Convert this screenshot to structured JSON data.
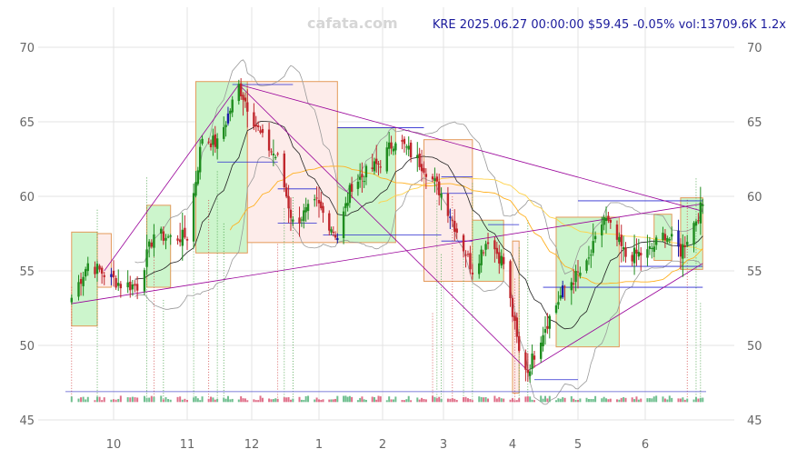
{
  "header": {
    "watermark": "cafata.com",
    "info": "KRE 2025.06.27 00:00:00 $59.45 -0.05% vol:13709.6K 1.2x"
  },
  "chart_data": {
    "type": "candlestick",
    "symbol": "KRE",
    "last_close": 59.45,
    "change_pct": -0.05,
    "volume": "13709.6K",
    "volume_ratio": "1.2x",
    "ylim": [
      45,
      71
    ],
    "y_ticks": [
      45,
      50,
      55,
      60,
      65,
      70
    ],
    "x_tick_labels": [
      "10",
      "11",
      "12",
      "1",
      "2",
      "3",
      "4",
      "5",
      "6"
    ],
    "grid": true,
    "colors": {
      "up": "#1e8c1e",
      "down": "#c0272d",
      "blue_candle": "#1a1aa8",
      "box_up": "#ccf5cc",
      "box_down": "#fdecea",
      "box_border": "#e39a5a",
      "ma_slow": "#ffd24a",
      "ma_mid": "#ffb020",
      "ma_fast": "#222222",
      "band": "#999999",
      "trend": "#990099"
    },
    "close_path": [
      [
        "2024-09-13",
        53.2
      ],
      [
        "2024-09-20",
        55.5
      ],
      [
        "2024-09-27",
        54.8
      ],
      [
        "2024-10-04",
        54.1
      ],
      [
        "2024-10-11",
        54.0
      ],
      [
        "2024-10-18",
        57.5
      ],
      [
        "2024-10-25",
        57.2
      ],
      [
        "2024-11-01",
        57.3
      ],
      [
        "2024-11-08",
        64.0
      ],
      [
        "2024-11-15",
        63.5
      ],
      [
        "2024-11-25",
        67.4
      ],
      [
        "2024-12-06",
        63.8
      ],
      [
        "2024-12-13",
        62.5
      ],
      [
        "2024-12-20",
        58.2
      ],
      [
        "2024-12-31",
        59.5
      ],
      [
        "2025-01-10",
        57.3
      ],
      [
        "2025-01-17",
        60.8
      ],
      [
        "2025-01-31",
        62.3
      ],
      [
        "2025-02-07",
        63.9
      ],
      [
        "2025-02-20",
        62.0
      ],
      [
        "2025-02-28",
        60.2
      ],
      [
        "2025-03-07",
        57.7
      ],
      [
        "2025-03-14",
        55.1
      ],
      [
        "2025-03-21",
        57.2
      ],
      [
        "2025-03-28",
        55.5
      ],
      [
        "2025-04-04",
        49.5
      ],
      [
        "2025-04-08",
        48.3
      ],
      [
        "2025-04-15",
        51.0
      ],
      [
        "2025-04-25",
        53.9
      ],
      [
        "2025-05-05",
        55.3
      ],
      [
        "2025-05-13",
        58.6
      ],
      [
        "2025-05-23",
        56.0
      ],
      [
        "2025-06-02",
        56.2
      ],
      [
        "2025-06-10",
        57.5
      ],
      [
        "2025-06-17",
        56.3
      ],
      [
        "2025-06-27",
        59.45
      ]
    ],
    "range_boxes": [
      {
        "from": "2024-09-13",
        "to": "2024-09-24",
        "low": 51.3,
        "high": 57.6,
        "direction": "up"
      },
      {
        "from": "2024-09-24",
        "to": "2024-09-30",
        "low": 53.9,
        "high": 57.5,
        "direction": "down"
      },
      {
        "from": "2024-10-15",
        "to": "2024-10-25",
        "low": 53.9,
        "high": 59.4,
        "direction": "up"
      },
      {
        "from": "2024-11-05",
        "to": "2024-11-29",
        "low": 56.2,
        "high": 67.7,
        "direction": "up"
      },
      {
        "from": "2024-11-29",
        "to": "2025-01-10",
        "low": 56.9,
        "high": 67.7,
        "direction": "down"
      },
      {
        "from": "2025-01-10",
        "to": "2025-02-07",
        "low": 56.9,
        "high": 64.6,
        "direction": "up"
      },
      {
        "from": "2025-02-20",
        "to": "2025-03-14",
        "low": 54.3,
        "high": 63.8,
        "direction": "down"
      },
      {
        "from": "2025-03-14",
        "to": "2025-03-28",
        "low": 54.3,
        "high": 58.4,
        "direction": "up"
      },
      {
        "from": "2025-04-01",
        "to": "2025-04-04",
        "low": 46.8,
        "high": 57.0,
        "direction": "down"
      },
      {
        "from": "2025-04-21",
        "to": "2025-05-20",
        "low": 49.9,
        "high": 58.6,
        "direction": "up"
      },
      {
        "from": "2025-06-05",
        "to": "2025-06-13",
        "low": 55.7,
        "high": 58.8,
        "direction": "up"
      },
      {
        "from": "2025-06-17",
        "to": "2025-06-27",
        "low": 55.1,
        "high": 59.9,
        "direction": "up"
      }
    ],
    "level_lines": [
      {
        "from": "2024-11-22",
        "to": "2024-12-20",
        "price": 67.5
      },
      {
        "from": "2024-11-15",
        "to": "2024-12-13",
        "price": 62.3
      },
      {
        "from": "2024-12-13",
        "to": "2024-12-31",
        "price": 60.5
      },
      {
        "from": "2024-12-13",
        "to": "2024-12-31",
        "price": 58.2
      },
      {
        "from": "2025-01-10",
        "to": "2025-02-20",
        "price": 64.6
      },
      {
        "from": "2025-01-03",
        "to": "2025-02-28",
        "price": 57.4
      },
      {
        "from": "2025-02-28",
        "to": "2025-03-14",
        "price": 61.3
      },
      {
        "from": "2025-02-28",
        "to": "2025-03-14",
        "price": 60.2
      },
      {
        "from": "2025-02-28",
        "to": "2025-03-14",
        "price": 57.0
      },
      {
        "from": "2025-03-21",
        "to": "2025-04-04",
        "price": 58.1
      },
      {
        "from": "2025-04-11",
        "to": "2025-05-01",
        "price": 47.7
      },
      {
        "from": "2025-04-15",
        "to": "2025-06-27",
        "price": 53.9
      },
      {
        "from": "2025-05-01",
        "to": "2025-06-27",
        "price": 59.7
      },
      {
        "from": "2025-05-20",
        "to": "2025-06-27",
        "price": 55.3
      }
    ],
    "trend_lines": [
      {
        "from": [
          "2024-09-13",
          52.8
        ],
        "to": [
          "2025-06-27",
          59.5
        ]
      },
      {
        "from": [
          "2024-09-27",
          55.0
        ],
        "to": [
          "2024-11-25",
          67.5
        ]
      },
      {
        "from": [
          "2024-11-25",
          67.5
        ],
        "to": [
          "2025-06-27",
          59.0
        ]
      },
      {
        "from": [
          "2024-11-25",
          67.5
        ],
        "to": [
          "2025-04-08",
          48.3
        ]
      },
      {
        "from": [
          "2025-04-08",
          48.3
        ],
        "to": [
          "2025-06-27",
          55.5
        ]
      }
    ],
    "signal_dates": [
      "2024-09-13",
      "2024-09-24",
      "2024-10-15",
      "2024-10-18",
      "2024-10-22",
      "2024-11-04",
      "2024-11-11",
      "2024-11-15",
      "2024-11-18",
      "2024-12-13",
      "2024-12-16",
      "2024-12-20",
      "2025-02-24",
      "2025-02-26",
      "2025-02-28",
      "2025-03-05",
      "2025-03-10",
      "2025-03-14",
      "2025-04-02",
      "2025-04-04",
      "2025-04-08",
      "2025-06-20",
      "2025-06-24",
      "2025-06-26"
    ]
  }
}
